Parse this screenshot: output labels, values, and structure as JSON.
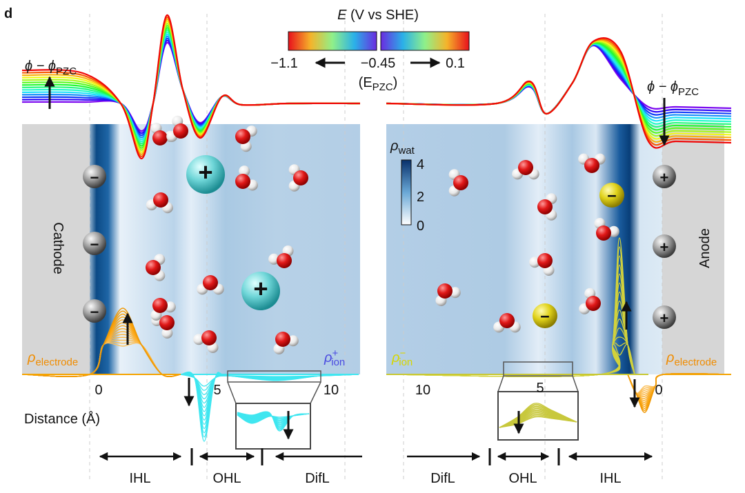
{
  "panel_label": "d",
  "potential_colorbar": {
    "symbol": "E",
    "title": "(V vs SHE)",
    "ticks": [
      "−1.1",
      "−0.45",
      "0.1"
    ],
    "pzc_open": "(E",
    "pzc_sub": "PZC",
    "pzc_close": ")"
  },
  "potential_axis": {
    "left": {
      "symbol": "ϕ − ϕ",
      "sub": "PZC"
    },
    "right": {
      "symbol": "ϕ − ϕ",
      "sub": "PZC"
    }
  },
  "electrodes": {
    "left": "Cathode",
    "right": "Anode"
  },
  "charges": {
    "cathode": [
      "−",
      "−",
      "−"
    ],
    "anode": [
      "+",
      "+",
      "+"
    ],
    "cations": [
      "+",
      "+"
    ],
    "anions": [
      "−",
      "−"
    ]
  },
  "water_density_colorbar": {
    "symbol": "ρ",
    "sub": "wat",
    "ticks": [
      4,
      2,
      0
    ]
  },
  "density_labels": {
    "electrode_left": {
      "symbol": "ρ",
      "sub": "electrode"
    },
    "cation": {
      "symbol": "ρ",
      "sup": "+",
      "sub": "ion"
    },
    "anion": {
      "symbol": "ρ",
      "sup": "−",
      "sub": "ion"
    },
    "electrode_right": {
      "symbol": "ρ",
      "sub": "electrode"
    }
  },
  "distance_axis": {
    "label": "Distance (Å)",
    "left_ticks": [
      0,
      5,
      10
    ],
    "right_ticks": [
      10,
      5,
      0
    ]
  },
  "regions": {
    "left": [
      "IHL",
      "OHL",
      "DifL"
    ],
    "right": [
      "DifL",
      "OHL",
      "IHL"
    ]
  }
}
